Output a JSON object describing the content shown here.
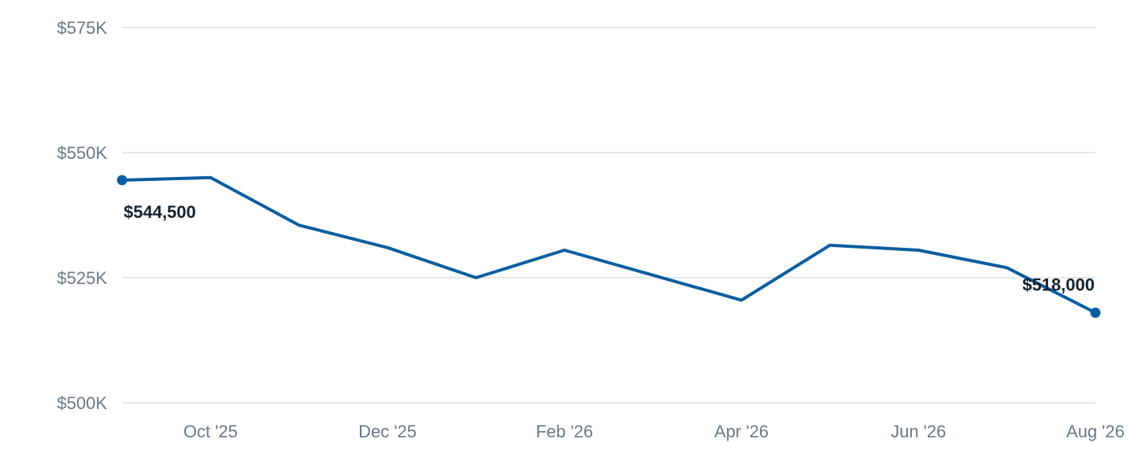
{
  "chart_data": {
    "type": "line",
    "title": "",
    "xlabel": "",
    "ylabel": "",
    "ylim": [
      500000,
      575000
    ],
    "y_ticks": [
      {
        "value": 500000,
        "label": "$500K"
      },
      {
        "value": 525000,
        "label": "$525K"
      },
      {
        "value": 550000,
        "label": "$550K"
      },
      {
        "value": 575000,
        "label": "$575K"
      }
    ],
    "x_ticks": [
      "Oct '25",
      "Dec '25",
      "Feb '26",
      "Apr '26",
      "Jun '26",
      "Aug '26"
    ],
    "x": [
      "Sep '25",
      "Oct '25",
      "Nov '25",
      "Dec '25",
      "Jan '26",
      "Feb '26",
      "Mar '26",
      "Apr '26",
      "May '26",
      "Jun '26",
      "Jul '26",
      "Aug '26"
    ],
    "series": [
      {
        "values": [
          544500,
          545000,
          535500,
          531000,
          525000,
          530500,
          525500,
          520500,
          531500,
          530500,
          527000,
          518000
        ]
      }
    ],
    "data_labels": [
      {
        "point": "Sep '25",
        "text": "$544,500"
      },
      {
        "point": "Aug '26",
        "text": "$518,000"
      }
    ],
    "color": "#0a5e9f",
    "gridlines": true,
    "legend": "none"
  }
}
